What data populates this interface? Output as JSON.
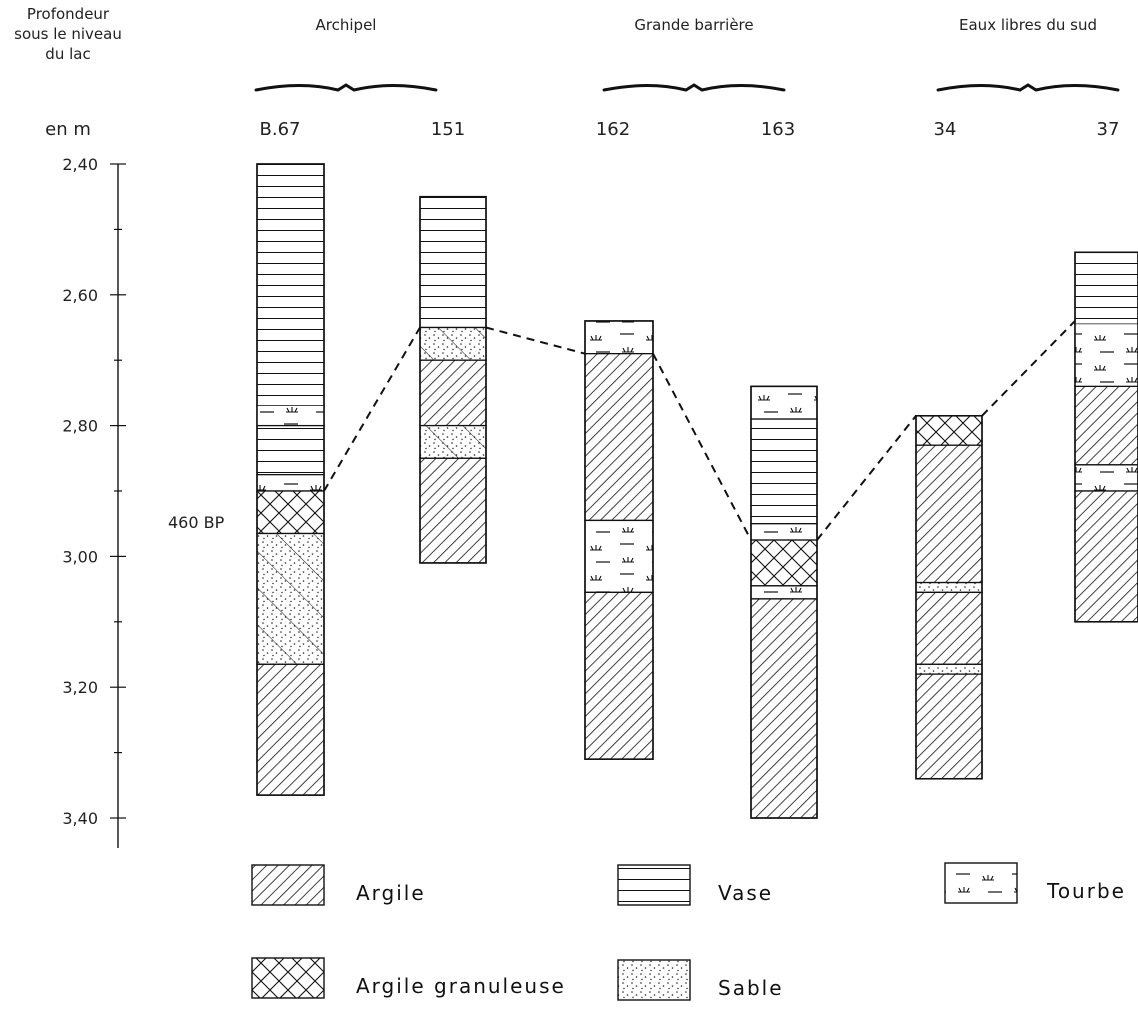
{
  "axis": {
    "title_lines": [
      "Profondeur",
      "sous le niveau",
      "du lac"
    ],
    "unit": "en  m",
    "ticks": [
      "2,40",
      "2,60",
      "2,80",
      "3,00",
      "3,20",
      "3,40"
    ]
  },
  "groups": [
    "Archipel",
    "Grande barrière",
    "Eaux libres du sud"
  ],
  "cores": [
    {
      "id": "B.67",
      "layers": [
        {
          "from": 2.4,
          "to": 2.77,
          "type": "vase"
        },
        {
          "from": 2.77,
          "to": 2.8,
          "type": "vase_tourbe"
        },
        {
          "from": 2.8,
          "to": 2.875,
          "type": "vase"
        },
        {
          "from": 2.875,
          "to": 2.9,
          "type": "tourbe"
        },
        {
          "from": 2.9,
          "to": 2.965,
          "type": "argile_granuleuse"
        },
        {
          "from": 2.965,
          "to": 3.165,
          "type": "sable_argile"
        },
        {
          "from": 3.165,
          "to": 3.365,
          "type": "argile"
        }
      ]
    },
    {
      "id": "151",
      "layers": [
        {
          "from": 2.45,
          "to": 2.65,
          "type": "vase"
        },
        {
          "from": 2.65,
          "to": 2.7,
          "type": "sable_argile"
        },
        {
          "from": 2.7,
          "to": 2.8,
          "type": "argile"
        },
        {
          "from": 2.8,
          "to": 2.85,
          "type": "sable_argile"
        },
        {
          "from": 2.85,
          "to": 3.01,
          "type": "argile"
        }
      ]
    },
    {
      "id": "162",
      "layers": [
        {
          "from": 2.64,
          "to": 2.69,
          "type": "tourbe"
        },
        {
          "from": 2.69,
          "to": 2.945,
          "type": "argile"
        },
        {
          "from": 2.945,
          "to": 3.055,
          "type": "tourbe"
        },
        {
          "from": 3.055,
          "to": 3.31,
          "type": "argile"
        }
      ]
    },
    {
      "id": "163",
      "layers": [
        {
          "from": 2.74,
          "to": 2.79,
          "type": "tourbe"
        },
        {
          "from": 2.79,
          "to": 2.95,
          "type": "vase"
        },
        {
          "from": 2.95,
          "to": 2.975,
          "type": "tourbe"
        },
        {
          "from": 2.975,
          "to": 3.045,
          "type": "argile_granuleuse"
        },
        {
          "from": 3.045,
          "to": 3.065,
          "type": "tourbe"
        },
        {
          "from": 3.065,
          "to": 3.4,
          "type": "argile"
        }
      ]
    },
    {
      "id": "34",
      "layers": [
        {
          "from": 2.785,
          "to": 2.83,
          "type": "argile_granuleuse"
        },
        {
          "from": 2.83,
          "to": 3.04,
          "type": "argile"
        },
        {
          "from": 3.04,
          "to": 3.055,
          "type": "sable"
        },
        {
          "from": 3.055,
          "to": 3.165,
          "type": "argile"
        },
        {
          "from": 3.165,
          "to": 3.18,
          "type": "sable"
        },
        {
          "from": 3.18,
          "to": 3.34,
          "type": "argile"
        }
      ]
    },
    {
      "id": "37",
      "layers": [
        {
          "from": 2.535,
          "to": 2.645,
          "type": "vase"
        },
        {
          "from": 2.645,
          "to": 2.74,
          "type": "sable_tourbe"
        },
        {
          "from": 2.74,
          "to": 2.86,
          "type": "argile"
        },
        {
          "from": 2.86,
          "to": 2.9,
          "type": "tourbe"
        },
        {
          "from": 2.9,
          "to": 3.1,
          "type": "argile"
        }
      ]
    }
  ],
  "correlation_depths": [
    2.9,
    2.65,
    2.69,
    2.975,
    2.785,
    2.64
  ],
  "annotation": "460 BP",
  "legend": [
    {
      "label": "Argile",
      "type": "argile"
    },
    {
      "label": "Vase",
      "type": "vase"
    },
    {
      "label": "Tourbe",
      "type": "tourbe"
    },
    {
      "label": "Argile granuleuse",
      "type": "argile_granuleuse"
    },
    {
      "label": "Sable",
      "type": "sable"
    }
  ]
}
